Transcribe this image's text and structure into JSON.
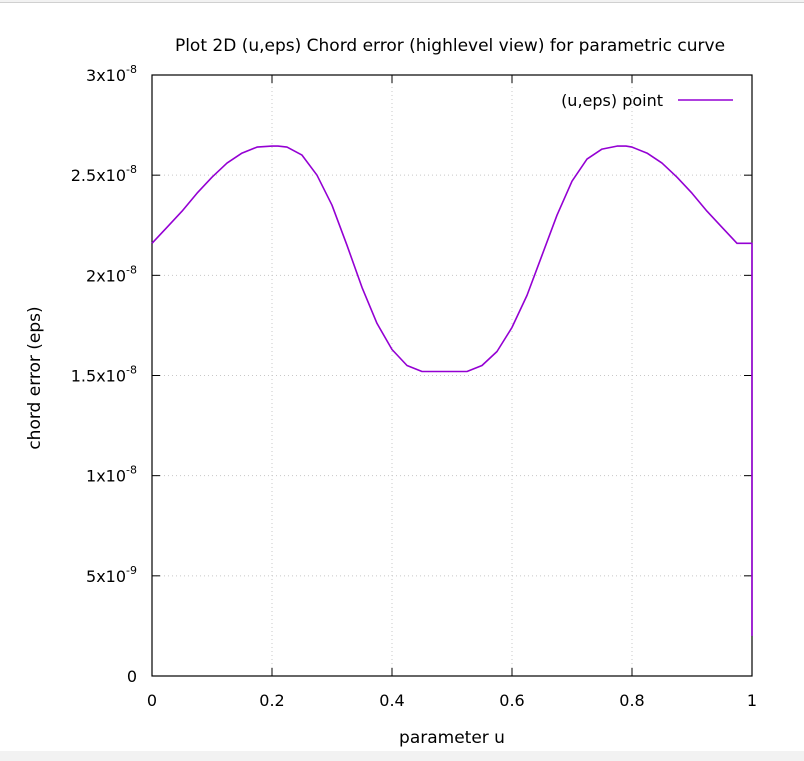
{
  "chart_data": {
    "type": "line",
    "title": "Plot 2D (u,eps) Chord error (highlevel view) for parametric curve",
    "xlabel": "parameter u",
    "ylabel": "chord error (eps)",
    "xlim": [
      0,
      1
    ],
    "ylim": [
      0,
      3e-08
    ],
    "grid": true,
    "legend_position": "top-right",
    "x_ticks": [
      {
        "value": 0,
        "label": "0"
      },
      {
        "value": 0.2,
        "label": "0.2"
      },
      {
        "value": 0.4,
        "label": "0.4"
      },
      {
        "value": 0.6,
        "label": "0.6"
      },
      {
        "value": 0.8,
        "label": "0.8"
      },
      {
        "value": 1,
        "label": "1"
      }
    ],
    "y_ticks": [
      {
        "value": 0,
        "mant": "0",
        "exp": ""
      },
      {
        "value": 5e-09,
        "mant": "5x10",
        "exp": "-9"
      },
      {
        "value": 1e-08,
        "mant": "1x10",
        "exp": "-8"
      },
      {
        "value": 1.5e-08,
        "mant": "1.5x10",
        "exp": "-8"
      },
      {
        "value": 2e-08,
        "mant": "2x10",
        "exp": "-8"
      },
      {
        "value": 2.5e-08,
        "mant": "2.5x10",
        "exp": "-8"
      },
      {
        "value": 3e-08,
        "mant": "3x10",
        "exp": "-8"
      }
    ],
    "series": [
      {
        "name": "(u,eps) point",
        "color": "#9400d3",
        "x": [
          0.0,
          0.025,
          0.05,
          0.075,
          0.1,
          0.125,
          0.15,
          0.175,
          0.2,
          0.21,
          0.225,
          0.25,
          0.275,
          0.3,
          0.325,
          0.35,
          0.375,
          0.4,
          0.425,
          0.45,
          0.475,
          0.5,
          0.525,
          0.55,
          0.575,
          0.6,
          0.625,
          0.65,
          0.675,
          0.7,
          0.725,
          0.75,
          0.775,
          0.79,
          0.8,
          0.825,
          0.85,
          0.875,
          0.9,
          0.925,
          0.95,
          0.975,
          1.0,
          1.0
        ],
        "values": [
          2.16e-08,
          2.24e-08,
          2.32e-08,
          2.41e-08,
          2.49e-08,
          2.56e-08,
          2.61e-08,
          2.64e-08,
          2.645e-08,
          2.645e-08,
          2.64e-08,
          2.6e-08,
          2.5e-08,
          2.35e-08,
          2.15e-08,
          1.94e-08,
          1.76e-08,
          1.63e-08,
          1.55e-08,
          1.52e-08,
          1.52e-08,
          1.52e-08,
          1.52e-08,
          1.55e-08,
          1.62e-08,
          1.74e-08,
          1.9e-08,
          2.1e-08,
          2.3e-08,
          2.47e-08,
          2.58e-08,
          2.63e-08,
          2.645e-08,
          2.645e-08,
          2.64e-08,
          2.61e-08,
          2.56e-08,
          2.49e-08,
          2.41e-08,
          2.32e-08,
          2.24e-08,
          2.16e-08,
          2.16e-08,
          2e-09
        ]
      }
    ]
  }
}
